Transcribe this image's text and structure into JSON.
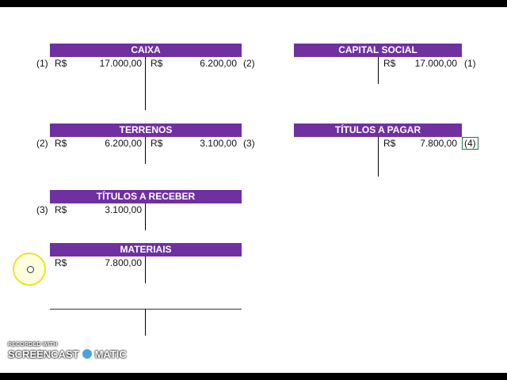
{
  "currency": "R$",
  "accounts": {
    "caixa": {
      "title": "CAIXA",
      "debit_ref": "(1)",
      "debit_value": "17.000,00",
      "credit_value": "6.200,00",
      "credit_ref": "(2)"
    },
    "capital_social": {
      "title": "CAPITAL SOCIAL",
      "credit_value": "17.000,00",
      "credit_ref": "(1)"
    },
    "terrenos": {
      "title": "TERRENOS",
      "debit_ref": "(2)",
      "debit_value": "6.200,00",
      "credit_value": "3.100,00",
      "credit_ref": "(3)"
    },
    "titulos_pagar": {
      "title": "TÍTULOS A PAGAR",
      "credit_value": "7.800,00",
      "credit_ref": "(4)"
    },
    "titulos_receber": {
      "title": "TÍTULOS A RECEBER",
      "debit_ref": "(3)",
      "debit_value": "3.100,00"
    },
    "materiais": {
      "title": "MATERIAIS",
      "debit_value": "7.800,00"
    }
  },
  "watermark": {
    "line1": "RECORDED WITH",
    "line2a": "SCREENCAST",
    "line2b": "MATIC"
  },
  "colors": {
    "header": "#7030a0",
    "selection": "#217346",
    "cursor": "#f0e030"
  }
}
